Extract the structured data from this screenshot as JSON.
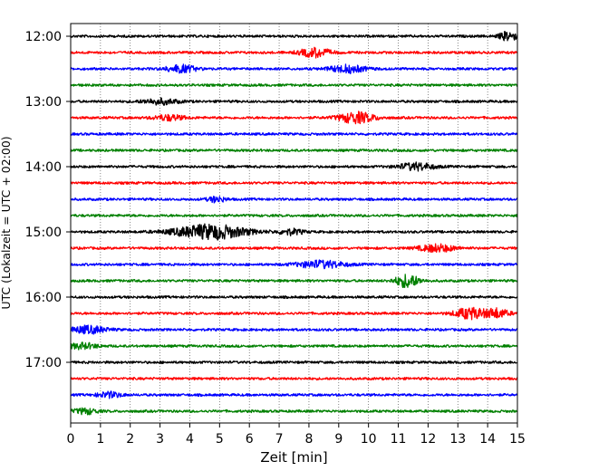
{
  "chart_data": {
    "type": "line",
    "title": "",
    "xlabel": "Zeit  [min]",
    "ylabel": "UTC (Lokalzeit = UTC + 02:00)",
    "xlim": [
      0,
      15
    ],
    "x_ticks": [
      "0",
      "1",
      "2",
      "3",
      "4",
      "5",
      "6",
      "7",
      "8",
      "9",
      "10",
      "11",
      "12",
      "13",
      "14",
      "15"
    ],
    "y_ticks": [
      "12:00",
      "13:00",
      "14:00",
      "15:00",
      "16:00",
      "17:00"
    ],
    "grid": "vertical dotted at each minute",
    "legend": "none",
    "series": [
      {
        "start": "12:00",
        "color": "#000000",
        "events": [
          {
            "t": 14.7,
            "a": 5,
            "w": 0.3
          }
        ]
      },
      {
        "start": "12:15",
        "color": "#ff0000",
        "events": [
          {
            "t": 8.2,
            "a": 5,
            "w": 0.5
          }
        ]
      },
      {
        "start": "12:30",
        "color": "#0000ff",
        "events": [
          {
            "t": 3.7,
            "a": 4,
            "w": 0.5
          },
          {
            "t": 9.3,
            "a": 4,
            "w": 0.6
          }
        ]
      },
      {
        "start": "12:45",
        "color": "#008000",
        "events": []
      },
      {
        "start": "13:00",
        "color": "#000000",
        "events": [
          {
            "t": 3.0,
            "a": 3,
            "w": 0.6
          }
        ]
      },
      {
        "start": "13:15",
        "color": "#ff0000",
        "events": [
          {
            "t": 3.3,
            "a": 3,
            "w": 0.5
          },
          {
            "t": 9.6,
            "a": 6,
            "w": 0.6
          }
        ]
      },
      {
        "start": "13:30",
        "color": "#0000ff",
        "events": []
      },
      {
        "start": "13:45",
        "color": "#008000",
        "events": []
      },
      {
        "start": "14:00",
        "color": "#000000",
        "events": [
          {
            "t": 11.6,
            "a": 4,
            "w": 0.6
          }
        ]
      },
      {
        "start": "14:15",
        "color": "#ff0000",
        "events": []
      },
      {
        "start": "14:30",
        "color": "#0000ff",
        "events": [
          {
            "t": 4.9,
            "a": 3,
            "w": 0.3
          }
        ]
      },
      {
        "start": "14:45",
        "color": "#008000",
        "events": []
      },
      {
        "start": "15:00",
        "color": "#000000",
        "events": [
          {
            "t": 4.7,
            "a": 8,
            "w": 1.2
          },
          {
            "t": 7.4,
            "a": 3,
            "w": 0.4
          }
        ]
      },
      {
        "start": "15:15",
        "color": "#ff0000",
        "events": [
          {
            "t": 12.3,
            "a": 4,
            "w": 0.6
          }
        ]
      },
      {
        "start": "15:30",
        "color": "#0000ff",
        "events": [
          {
            "t": 8.4,
            "a": 4,
            "w": 0.8
          }
        ]
      },
      {
        "start": "15:45",
        "color": "#008000",
        "events": [
          {
            "t": 11.3,
            "a": 7,
            "w": 0.4
          }
        ]
      },
      {
        "start": "16:00",
        "color": "#000000",
        "events": []
      },
      {
        "start": "16:15",
        "color": "#ff0000",
        "events": [
          {
            "t": 13.4,
            "a": 6,
            "w": 0.5
          },
          {
            "t": 14.3,
            "a": 5,
            "w": 0.4
          }
        ]
      },
      {
        "start": "16:30",
        "color": "#0000ff",
        "events": [
          {
            "t": 0.6,
            "a": 4,
            "w": 0.6
          }
        ]
      },
      {
        "start": "16:45",
        "color": "#008000",
        "events": [
          {
            "t": 0.4,
            "a": 3,
            "w": 0.5
          }
        ]
      },
      {
        "start": "17:00",
        "color": "#000000",
        "events": []
      },
      {
        "start": "17:15",
        "color": "#ff0000",
        "events": []
      },
      {
        "start": "17:30",
        "color": "#0000ff",
        "events": [
          {
            "t": 1.3,
            "a": 3,
            "w": 0.4
          }
        ]
      },
      {
        "start": "17:45",
        "color": "#008000",
        "events": [
          {
            "t": 0.5,
            "a": 3,
            "w": 0.4
          }
        ]
      }
    ]
  }
}
